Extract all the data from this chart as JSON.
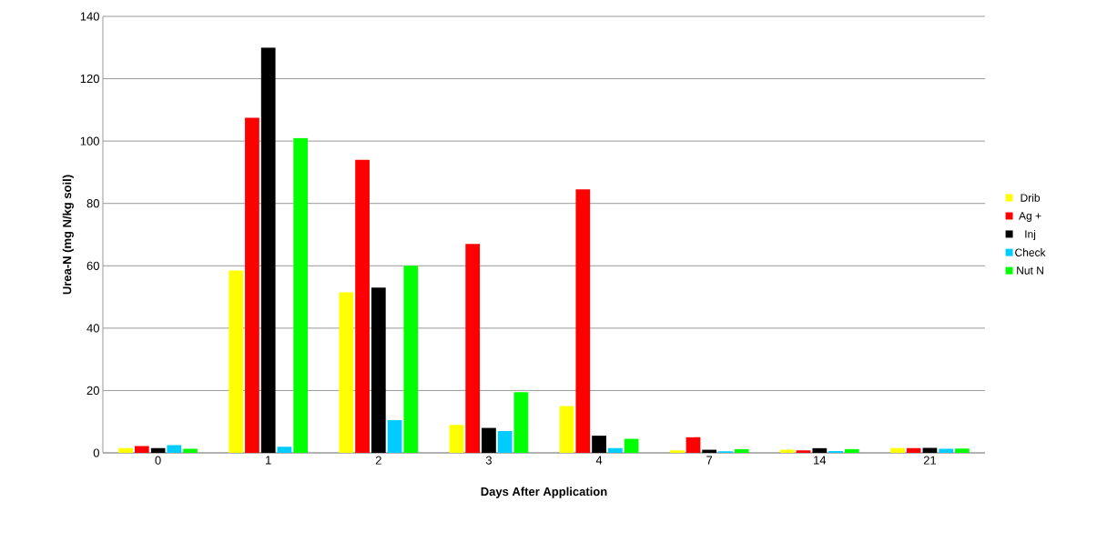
{
  "chart_data": {
    "type": "bar",
    "xlabel": "Days After Application",
    "ylabel": "Urea-N (mg N/kg soil)",
    "categories": [
      "0",
      "1",
      "2",
      "3",
      "4",
      "7",
      "14",
      "21"
    ],
    "series": [
      {
        "name": "Drib",
        "color": "#ffff00",
        "values": [
          1.5,
          58.5,
          51.5,
          9,
          15,
          0.8,
          1,
          1.5
        ]
      },
      {
        "name": "Ag +",
        "color": "#ff0000",
        "values": [
          2.2,
          107.5,
          94,
          67,
          84.5,
          5,
          0.8,
          1.5
        ]
      },
      {
        "name": "Inj",
        "color": "#000000",
        "values": [
          1.5,
          130,
          53,
          8,
          5.5,
          1,
          1.5,
          1.6
        ]
      },
      {
        "name": "Check",
        "color": "#00ccff",
        "values": [
          2.5,
          2,
          10.5,
          7,
          1.5,
          0.5,
          0.6,
          1.3
        ]
      },
      {
        "name": "Nut N",
        "color": "#00ff00",
        "values": [
          1.3,
          101,
          60,
          19.5,
          4.5,
          1.2,
          1.2,
          1.4
        ]
      }
    ],
    "ylim": [
      0,
      140
    ],
    "yticks": [
      0,
      20,
      40,
      60,
      80,
      100,
      120,
      140
    ],
    "grid": "y",
    "legend": "right"
  }
}
